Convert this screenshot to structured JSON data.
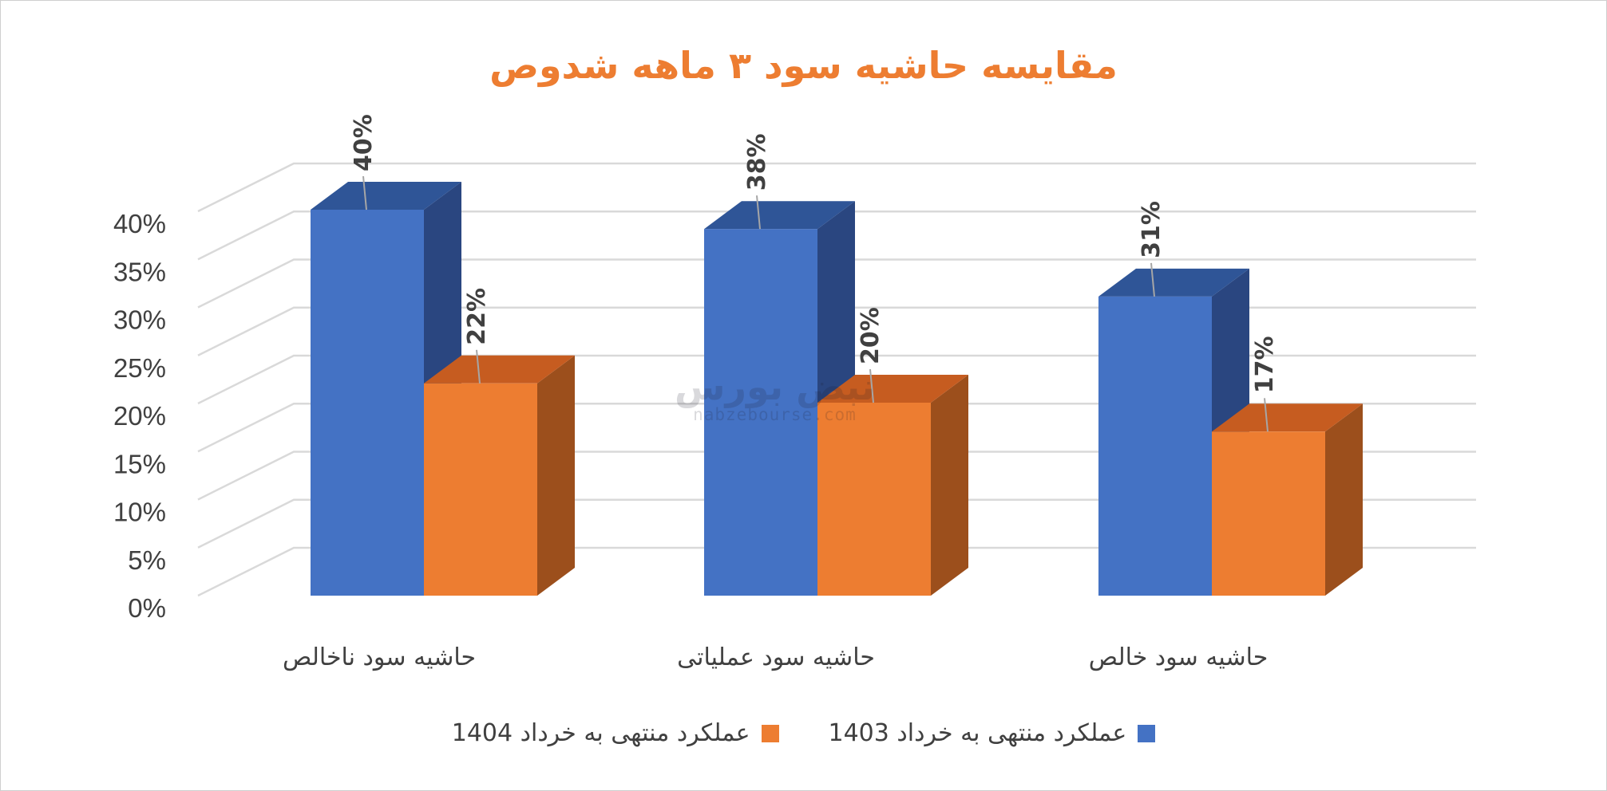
{
  "chart_data": {
    "type": "bar",
    "title": "مقایسه حاشیه سود ۳ ماهه شدوص",
    "categories": [
      "حاشیه سود ناخالص",
      "حاشیه سود عملیاتی",
      "حاشیه سود خالص"
    ],
    "series": [
      {
        "name": "عملکرد منتهی به خرداد 1403",
        "values": [
          40,
          38,
          31
        ],
        "labels": [
          "40%",
          "38%",
          "31%"
        ],
        "color": "#4472c4"
      },
      {
        "name": "عملکرد منتهی به خرداد 1404",
        "values": [
          22,
          20,
          17
        ],
        "labels": [
          "22%",
          "20%",
          "17%"
        ],
        "color": "#ed7d31"
      }
    ],
    "yticks": [
      "0%",
      "5%",
      "10%",
      "15%",
      "20%",
      "25%",
      "30%",
      "35%",
      "40%"
    ],
    "ylim": [
      0,
      40
    ],
    "xlabel": "",
    "ylabel": "",
    "grid": true,
    "legend_position": "bottom",
    "style": "3d-column"
  },
  "watermark": {
    "logo_text": "نبض بورس",
    "url_text": "nabzebourse.com"
  }
}
